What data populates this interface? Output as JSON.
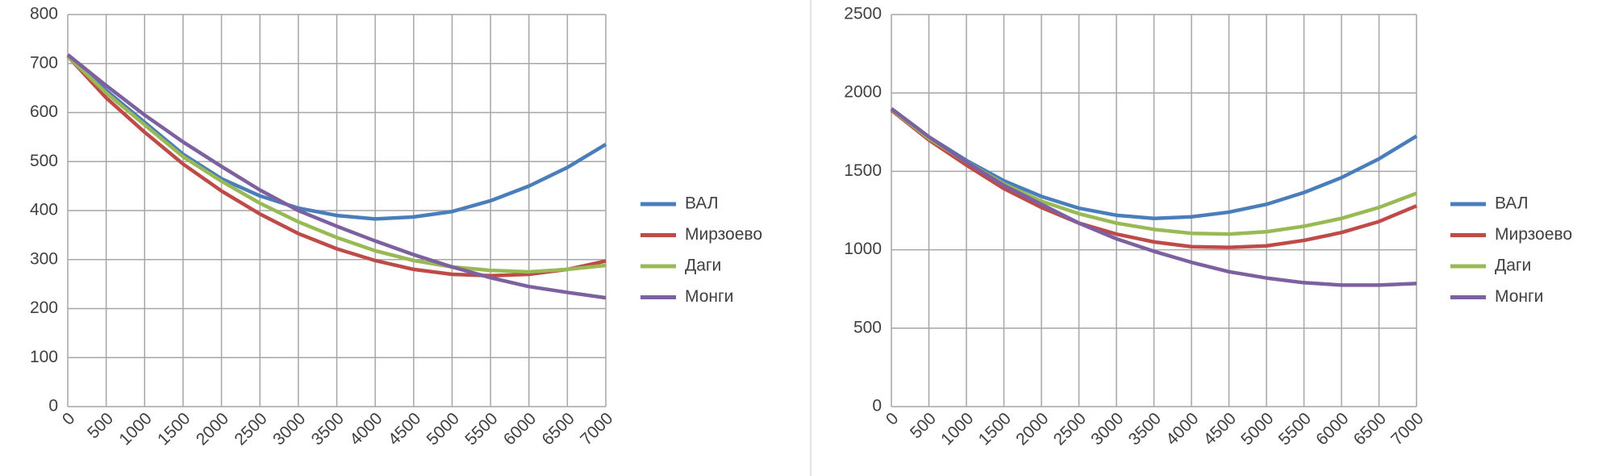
{
  "chart_data": [
    {
      "type": "line",
      "grid": true,
      "legend": "right",
      "x": [
        0,
        500,
        1000,
        1500,
        2000,
        2500,
        3000,
        3500,
        4000,
        4500,
        5000,
        5500,
        6000,
        6500,
        7000
      ],
      "xlim": [
        0,
        7000
      ],
      "xticks": [
        0,
        500,
        1000,
        1500,
        2000,
        2500,
        3000,
        3500,
        4000,
        4500,
        5000,
        5500,
        6000,
        6500,
        7000
      ],
      "ylim": [
        0,
        800
      ],
      "yticks": [
        0,
        100,
        200,
        300,
        400,
        500,
        600,
        700,
        800
      ],
      "series": [
        {
          "name": "ВАЛ",
          "color": "#4a7ebb",
          "values": [
            715,
            645,
            580,
            515,
            465,
            430,
            405,
            390,
            383,
            387,
            398,
            420,
            450,
            488,
            535
          ]
        },
        {
          "name": "Мирзоево",
          "color": "#be4b48",
          "values": [
            715,
            630,
            560,
            495,
            440,
            393,
            353,
            322,
            298,
            280,
            270,
            267,
            270,
            280,
            297
          ]
        },
        {
          "name": "Даги",
          "color": "#98b954",
          "values": [
            715,
            640,
            575,
            510,
            460,
            415,
            377,
            345,
            318,
            298,
            285,
            278,
            275,
            280,
            288
          ]
        },
        {
          "name": "Монги",
          "color": "#7d60a0",
          "values": [
            718,
            655,
            595,
            540,
            490,
            442,
            400,
            368,
            338,
            310,
            285,
            263,
            245,
            233,
            222
          ]
        }
      ]
    },
    {
      "type": "line",
      "grid": true,
      "legend": "right",
      "x": [
        0,
        500,
        1000,
        1500,
        2000,
        2500,
        3000,
        3500,
        4000,
        4500,
        5000,
        5500,
        6000,
        6500,
        7000
      ],
      "xlim": [
        0,
        7000
      ],
      "xticks": [
        0,
        500,
        1000,
        1500,
        2000,
        2500,
        3000,
        3500,
        4000,
        4500,
        5000,
        5500,
        6000,
        6500,
        7000
      ],
      "ylim": [
        0,
        2500
      ],
      "yticks": [
        0,
        500,
        1000,
        1500,
        2000,
        2500
      ],
      "series": [
        {
          "name": "ВАЛ",
          "color": "#4a7ebb",
          "values": [
            1900,
            1720,
            1570,
            1440,
            1340,
            1265,
            1220,
            1200,
            1210,
            1240,
            1290,
            1365,
            1460,
            1580,
            1725
          ]
        },
        {
          "name": "Мирзоево",
          "color": "#be4b48",
          "values": [
            1890,
            1700,
            1540,
            1390,
            1270,
            1170,
            1100,
            1050,
            1020,
            1015,
            1025,
            1060,
            1110,
            1180,
            1280
          ]
        },
        {
          "name": "Даги",
          "color": "#98b954",
          "values": [
            1895,
            1710,
            1560,
            1420,
            1310,
            1230,
            1170,
            1130,
            1105,
            1100,
            1115,
            1150,
            1200,
            1270,
            1360
          ]
        },
        {
          "name": "Монги",
          "color": "#7d60a0",
          "values": [
            1900,
            1720,
            1560,
            1410,
            1290,
            1170,
            1070,
            990,
            920,
            860,
            820,
            790,
            775,
            775,
            785
          ]
        }
      ]
    }
  ]
}
